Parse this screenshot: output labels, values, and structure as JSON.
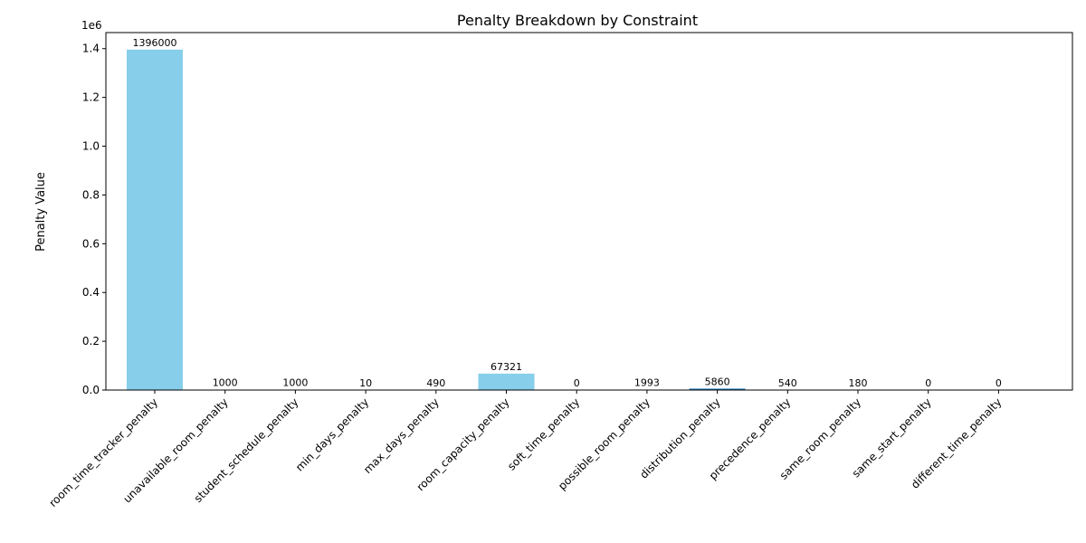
{
  "chart_data": {
    "type": "bar",
    "title": "Penalty Breakdown by Constraint",
    "xlabel": "",
    "ylabel": "Penalty Value",
    "y_scale_label": "1e6",
    "ylim": [
      0,
      1465800
    ],
    "yticks": [
      0,
      200000,
      400000,
      600000,
      800000,
      1000000,
      1200000,
      1400000
    ],
    "ytick_labels": [
      "0.0",
      "0.2",
      "0.4",
      "0.6",
      "0.8",
      "1.0",
      "1.2",
      "1.4"
    ],
    "categories": [
      "room_time_tracker_penalty",
      "unavailable_room_penalty",
      "student_schedule_penalty",
      "min_days_penalty",
      "max_days_penalty",
      "room_capacity_penalty",
      "soft_time_penalty",
      "possible_room_penalty",
      "distribution_penalty",
      "precedence_penalty",
      "same_room_penalty",
      "same_start_penalty",
      "different_time_penalty"
    ],
    "values": [
      1396000,
      1000,
      1000,
      10,
      490,
      67321,
      0,
      1993,
      5860,
      540,
      180,
      0,
      0
    ],
    "value_labels": [
      "1396000",
      "1000",
      "1000",
      "10",
      "490",
      "67321",
      "0",
      "1993",
      "5860",
      "540",
      "180",
      "0",
      "0"
    ],
    "bar_colors": [
      "#87CEEB",
      "#87CEEB",
      "#87CEEB",
      "#87CEEB",
      "#87CEEB",
      "#87CEEB",
      "#87CEEB",
      "#87CEEB",
      "#1f77b4",
      "#87CEEB",
      "#87CEEB",
      "#87CEEB",
      "#87CEEB"
    ],
    "grid": false,
    "legend": "none"
  }
}
